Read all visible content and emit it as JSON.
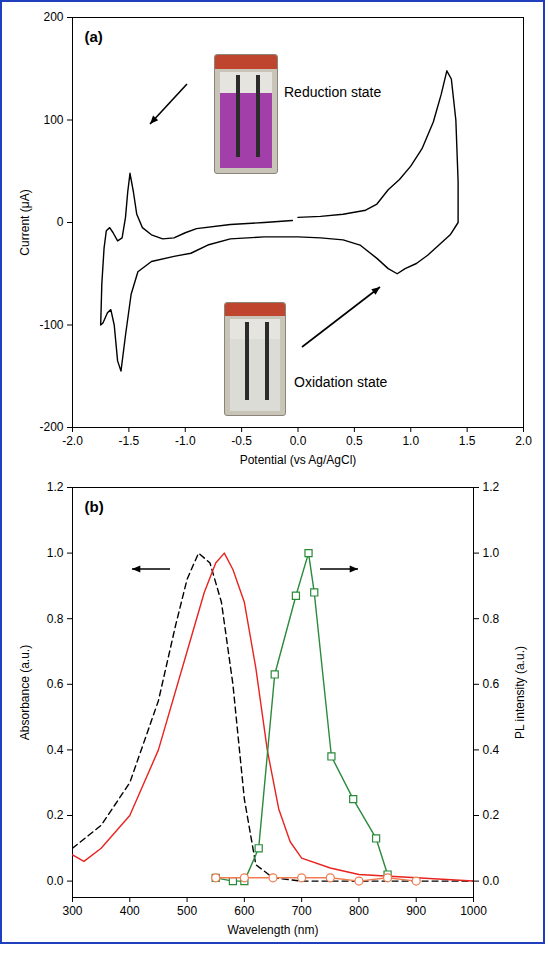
{
  "chart_data": [
    {
      "type": "line",
      "title": "(a)",
      "x_label": "Potential (vs Ag/AgCl)",
      "y_label": "Current (μA)",
      "xlim": [
        -2,
        2
      ],
      "xticks": [
        {
          "value": -2,
          "label": "-2.0"
        },
        -1.5,
        {
          "value": -1,
          "label": "-1.0"
        },
        -0.5,
        {
          "value": 0,
          "label": "0.0"
        },
        0.5,
        {
          "value": 1,
          "label": "1.0"
        },
        1.5,
        {
          "value": 2,
          "label": "2.0"
        }
      ],
      "ylim": [
        -200,
        200
      ],
      "yticks": [
        -200,
        -100,
        0,
        100,
        200
      ],
      "annotations": [
        "Reduction state",
        "Oxidation state"
      ],
      "series": [
        {
          "color": "#000000",
          "x": [
            0,
            0.2,
            0.4,
            0.6,
            0.7,
            0.8,
            0.9,
            1.0,
            1.1,
            1.2,
            1.27,
            1.32,
            1.36,
            1.4,
            1.42,
            1.42,
            1.35,
            1.25,
            1.15,
            1.05,
            0.95,
            0.88,
            0.8,
            0.7,
            0.55,
            0.4,
            0.2,
            0,
            -0.3,
            -0.6,
            -0.8,
            -0.95,
            -1.1,
            -1.3,
            -1.42,
            -1.48,
            -1.53,
            -1.57,
            -1.6,
            -1.63,
            -1.66,
            -1.69,
            -1.73,
            -1.75,
            -1.74,
            -1.72,
            -1.7,
            -1.67,
            -1.64,
            -1.6,
            -1.56,
            -1.53,
            -1.51,
            -1.49,
            -1.46,
            -1.43,
            -1.38,
            -1.3,
            -1.2,
            -1.1,
            -1.0,
            -0.9,
            -0.6,
            -0.3,
            -0.05
          ],
          "values": [
            5,
            6,
            8,
            12,
            18,
            32,
            42,
            55,
            72,
            98,
            125,
            148,
            140,
            100,
            40,
            0,
            -12,
            -22,
            -32,
            -40,
            -45,
            -50,
            -45,
            -35,
            -22,
            -17,
            -15,
            -14,
            -14,
            -16,
            -22,
            -30,
            -33,
            -38,
            -48,
            -70,
            -110,
            -145,
            -135,
            -100,
            -85,
            -88,
            -98,
            -100,
            -60,
            -25,
            -8,
            -5,
            -10,
            -18,
            -15,
            5,
            30,
            48,
            30,
            8,
            -5,
            -12,
            -16,
            -15,
            -10,
            -6,
            -2,
            0,
            2
          ]
        }
      ]
    },
    {
      "type": "line",
      "title": "(b)",
      "x_label": "Wavelength (nm)",
      "y_label": "Absorbance (a.u.)",
      "y2_label": "PL intensity (a.u.)",
      "xlim": [
        300,
        1000
      ],
      "xticks": [
        300,
        400,
        500,
        600,
        700,
        800,
        900,
        1000
      ],
      "ylim": [
        -0.05,
        1.2
      ],
      "yticks": [
        {
          "value": 0,
          "label": "0.0"
        },
        0.2,
        0.4,
        0.6,
        0.8,
        {
          "value": 1,
          "label": "1.0"
        },
        1.2
      ],
      "y2lim": [
        -0.05,
        1.2
      ],
      "y2ticks": [
        {
          "value": 0,
          "label": "0.0"
        },
        0.2,
        0.4,
        0.6,
        0.8,
        {
          "value": 1,
          "label": "1.0"
        },
        1.2
      ],
      "series": [
        {
          "color": "#000000",
          "line_style": "dashed",
          "x": [
            300,
            350,
            400,
            450,
            480,
            500,
            520,
            540,
            560,
            580,
            600,
            620,
            650,
            700,
            800,
            900,
            1000
          ],
          "values": [
            0.1,
            0.17,
            0.3,
            0.55,
            0.78,
            0.92,
            1.0,
            0.97,
            0.85,
            0.6,
            0.25,
            0.05,
            0.01,
            0,
            0,
            0,
            0
          ]
        },
        {
          "color": "#e8231f",
          "line_style": "solid",
          "x": [
            300,
            320,
            350,
            400,
            450,
            500,
            530,
            550,
            565,
            580,
            600,
            620,
            640,
            660,
            680,
            700,
            750,
            800,
            900,
            1000
          ],
          "values": [
            0.08,
            0.06,
            0.1,
            0.2,
            0.4,
            0.7,
            0.88,
            0.97,
            1.0,
            0.95,
            0.85,
            0.65,
            0.4,
            0.22,
            0.12,
            0.07,
            0.04,
            0.02,
            0.01,
            0
          ]
        },
        {
          "color": "#2a8a3a",
          "line_style": "solid",
          "marker": "square",
          "axis": "y2",
          "x": [
            550,
            580,
            600,
            625,
            653,
            690,
            712,
            722,
            752,
            790,
            830,
            850
          ],
          "values": [
            0.01,
            0,
            0,
            0.1,
            0.63,
            0.87,
            1.0,
            0.88,
            0.38,
            0.25,
            0.13,
            0.02
          ]
        },
        {
          "color": "#f07c50",
          "line_style": "solid",
          "marker": "circle",
          "axis": "y2",
          "x": [
            550,
            600,
            650,
            700,
            750,
            800,
            850,
            900
          ],
          "values": [
            0.01,
            0.01,
            0.01,
            0.01,
            0.01,
            0,
            0.01,
            0
          ]
        }
      ]
    }
  ]
}
